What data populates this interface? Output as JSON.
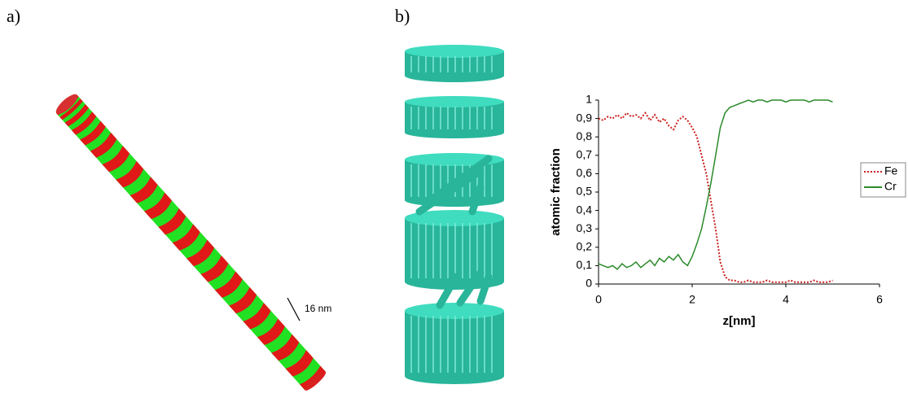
{
  "figure": {
    "panel_a": "a)",
    "panel_b": "b)",
    "scale_label": "16 nm"
  },
  "chart_data": {
    "type": "line",
    "xlabel": "z[nm]",
    "ylabel": "atomic fraction",
    "x": [
      0,
      0.1,
      0.2,
      0.3,
      0.4,
      0.5,
      0.6,
      0.7,
      0.8,
      0.9,
      1.0,
      1.1,
      1.2,
      1.3,
      1.4,
      1.5,
      1.6,
      1.7,
      1.8,
      1.9,
      2.0,
      2.1,
      2.2,
      2.3,
      2.4,
      2.5,
      2.6,
      2.7,
      2.8,
      2.9,
      3.0,
      3.1,
      3.2,
      3.3,
      3.4,
      3.5,
      3.6,
      3.7,
      3.8,
      3.9,
      4.0,
      4.1,
      4.2,
      4.3,
      4.4,
      4.5,
      4.6,
      4.7,
      4.8,
      4.9,
      5.0
    ],
    "series": [
      {
        "name": "Fe",
        "color": "#cc2020",
        "style": "dotted",
        "values": [
          0.9,
          0.89,
          0.91,
          0.9,
          0.92,
          0.9,
          0.93,
          0.91,
          0.92,
          0.9,
          0.93,
          0.89,
          0.92,
          0.88,
          0.9,
          0.86,
          0.84,
          0.89,
          0.91,
          0.89,
          0.85,
          0.8,
          0.7,
          0.6,
          0.45,
          0.3,
          0.12,
          0.04,
          0.02,
          0.02,
          0.01,
          0.01,
          0.02,
          0.01,
          0.01,
          0.01,
          0.02,
          0.01,
          0.01,
          0.01,
          0.01,
          0.02,
          0.01,
          0.01,
          0.01,
          0.01,
          0.02,
          0.01,
          0.01,
          0.01,
          0.02
        ]
      },
      {
        "name": "Cr",
        "color": "#2a8a2a",
        "style": "solid",
        "values": [
          0.11,
          0.1,
          0.09,
          0.1,
          0.08,
          0.11,
          0.09,
          0.1,
          0.12,
          0.09,
          0.11,
          0.13,
          0.1,
          0.14,
          0.12,
          0.15,
          0.13,
          0.16,
          0.12,
          0.1,
          0.15,
          0.22,
          0.3,
          0.42,
          0.55,
          0.7,
          0.85,
          0.93,
          0.96,
          0.97,
          0.98,
          0.99,
          1.0,
          0.99,
          1.0,
          1.0,
          0.99,
          1.0,
          1.0,
          1.0,
          0.99,
          1.0,
          1.0,
          1.0,
          1.0,
          0.99,
          1.0,
          1.0,
          1.0,
          1.0,
          0.99
        ]
      }
    ],
    "xlim": [
      0,
      6
    ],
    "xticks": [
      0,
      2,
      4,
      6
    ],
    "ylim": [
      0,
      1
    ],
    "yticks": [
      0,
      {
        "value": 0.1,
        "label": "0,1"
      },
      {
        "value": 0.2,
        "label": "0,2"
      },
      {
        "value": 0.3,
        "label": "0,3"
      },
      {
        "value": 0.4,
        "label": "0,4"
      },
      {
        "value": 0.5,
        "label": "0,5"
      },
      {
        "value": 0.6,
        "label": "0,6"
      },
      {
        "value": 0.7,
        "label": "0,7"
      },
      {
        "value": 0.8,
        "label": "0,8"
      },
      {
        "value": 0.9,
        "label": "0,9"
      },
      1
    ],
    "grid": false,
    "legend": "right"
  }
}
